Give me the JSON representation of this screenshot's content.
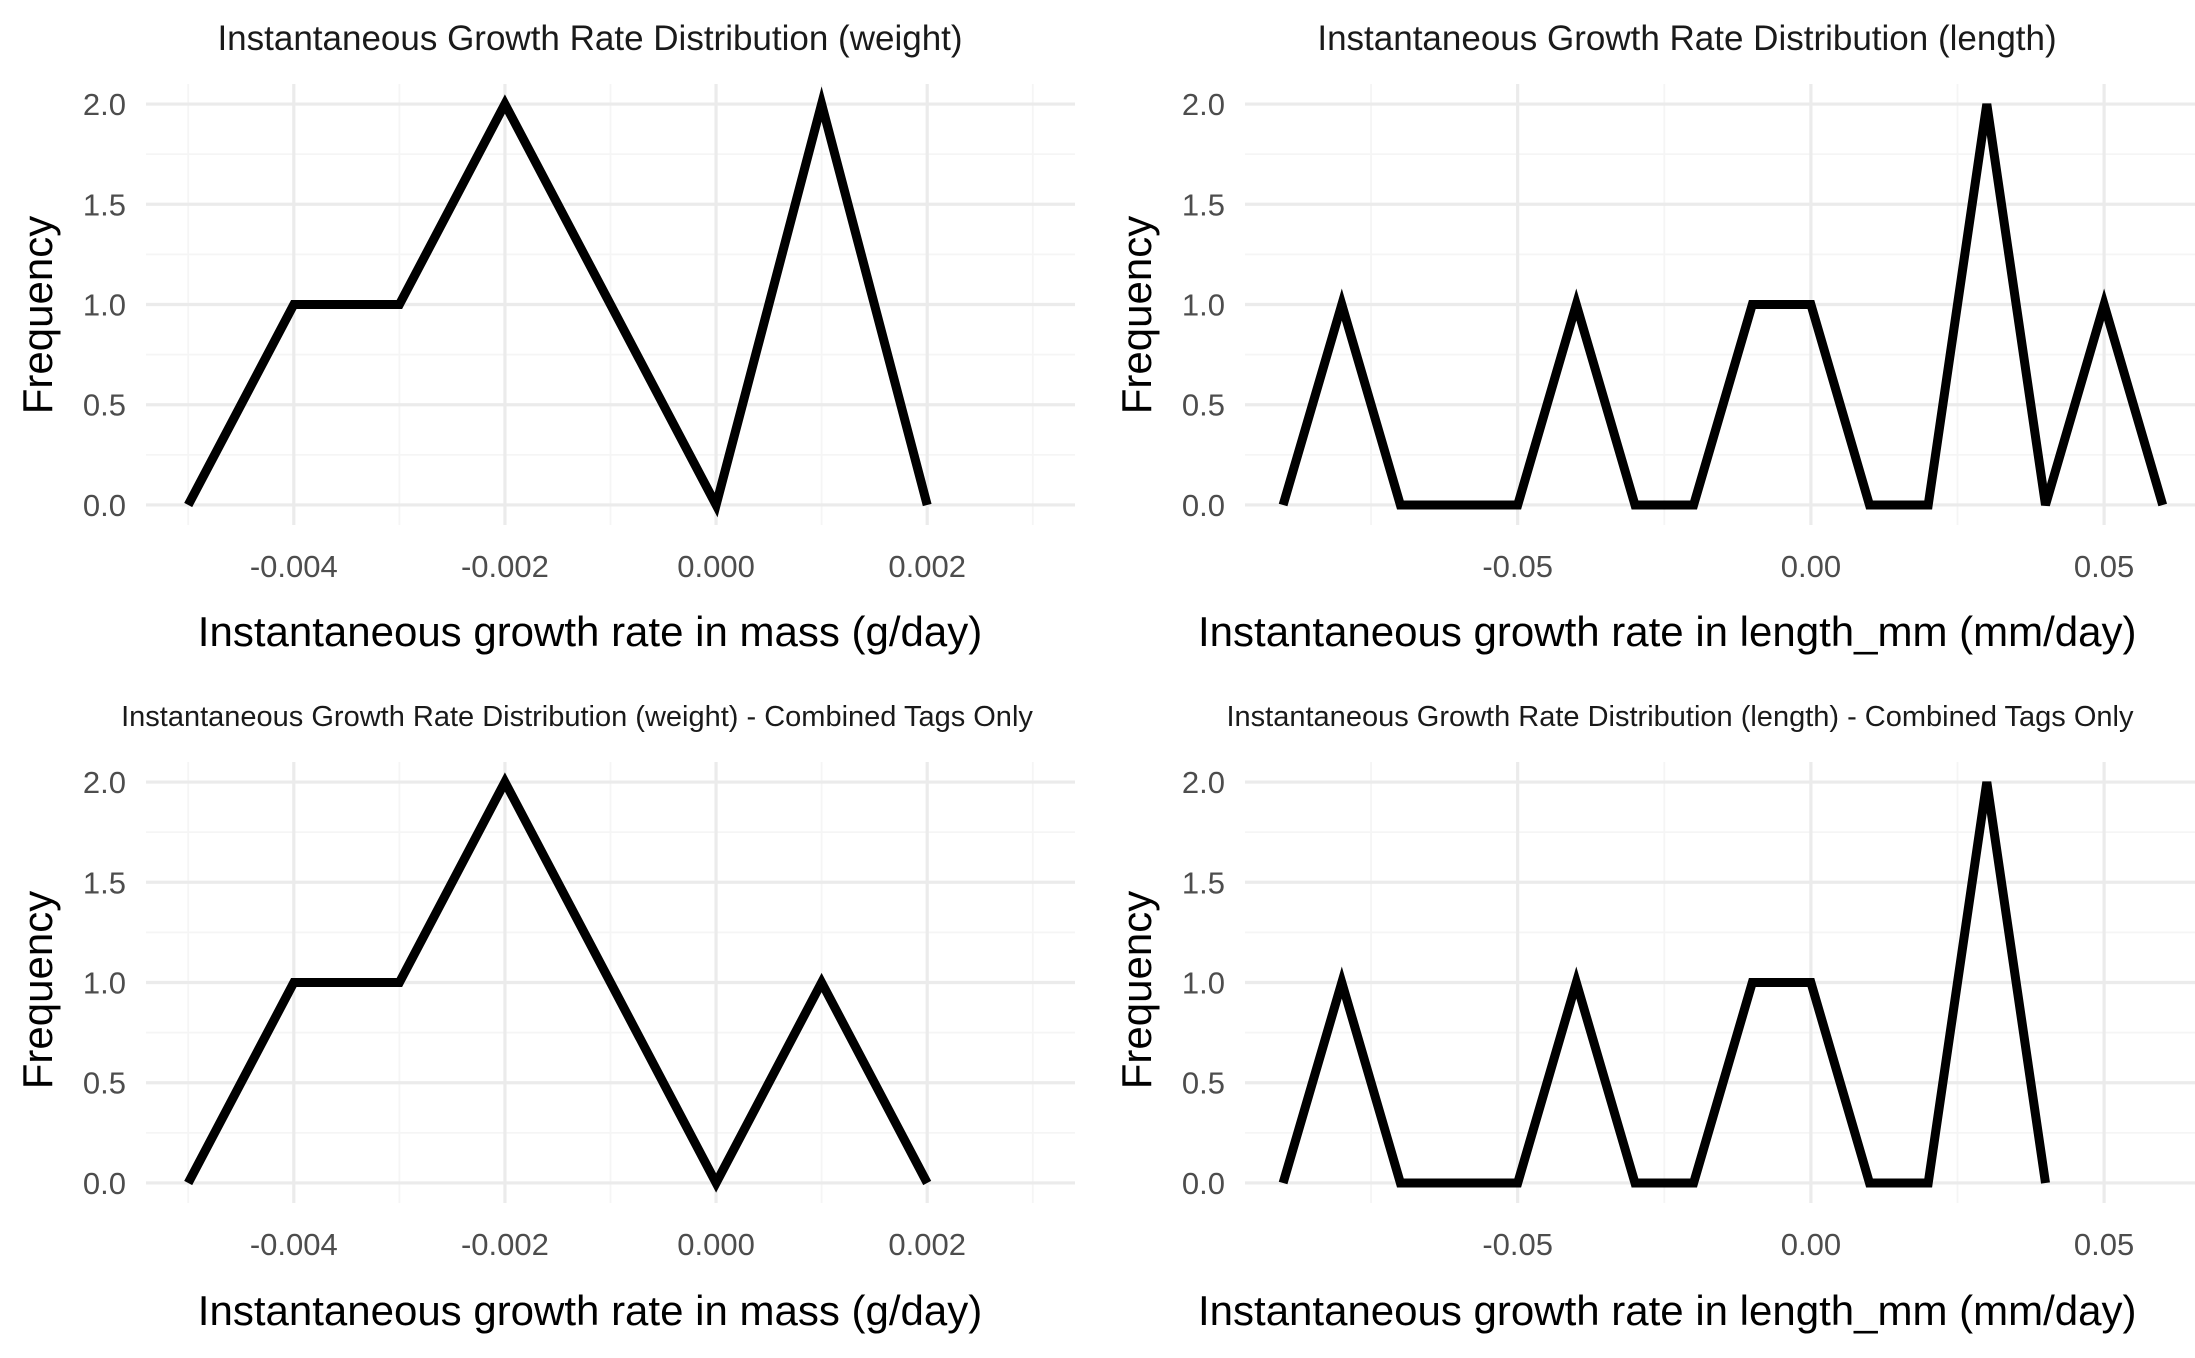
{
  "chart_data": [
    {
      "type": "line",
      "title": "Instantaneous Growth Rate Distribution (weight)",
      "xlabel": "Instantaneous growth rate in mass (g/day)",
      "ylabel": "Frequency",
      "x": [
        -0.005,
        -0.004,
        -0.003,
        -0.002,
        -0.001,
        0.0,
        0.001,
        0.002
      ],
      "y": [
        0,
        1,
        1,
        2,
        1,
        0,
        2,
        0
      ],
      "xlim": [
        -0.0054,
        0.0034
      ],
      "ylim": [
        0,
        2.0
      ],
      "x_ticks": [
        -0.004,
        -0.002,
        0.0,
        0.002
      ],
      "x_tick_labels": [
        "-0.004",
        "-0.002",
        "0.000",
        "0.002"
      ],
      "y_ticks": [
        0,
        0.5,
        1,
        1.5,
        2
      ],
      "y_tick_labels": [
        "0.0",
        "0.5",
        "1.0",
        "1.5",
        "2.0"
      ],
      "grid": true
    },
    {
      "type": "line",
      "title": "Instantaneous Growth Rate Distribution (length)",
      "xlabel": "Instantaneous growth rate in length_mm (mm/day)",
      "ylabel": "Frequency",
      "x": [
        -0.09,
        -0.08,
        -0.07,
        -0.06,
        -0.05,
        -0.04,
        -0.03,
        -0.02,
        -0.01,
        0.0,
        0.01,
        0.02,
        0.03,
        0.04,
        0.05,
        0.06
      ],
      "y": [
        0,
        1,
        0,
        0,
        0,
        1,
        0,
        0,
        1,
        1,
        0,
        0,
        2,
        0,
        1,
        0
      ],
      "xlim": [
        -0.0965,
        0.0655
      ],
      "ylim": [
        0,
        2.0
      ],
      "x_ticks": [
        -0.05,
        0.0,
        0.05
      ],
      "x_tick_labels": [
        "-0.05",
        "0.00",
        "0.05"
      ],
      "y_ticks": [
        0,
        0.5,
        1,
        1.5,
        2
      ],
      "y_tick_labels": [
        "0.0",
        "0.5",
        "1.0",
        "1.5",
        "2.0"
      ],
      "grid": true
    },
    {
      "type": "line",
      "title": "Instantaneous Growth Rate Distribution (weight) - Combined Tags Only",
      "xlabel": "Instantaneous growth rate in mass (g/day)",
      "ylabel": "Frequency",
      "x": [
        -0.005,
        -0.004,
        -0.003,
        -0.002,
        -0.001,
        0.0,
        0.001,
        0.002
      ],
      "y": [
        0,
        1,
        1,
        2,
        1,
        0,
        1,
        0
      ],
      "xlim": [
        -0.0054,
        0.0034
      ],
      "ylim": [
        0,
        2.0
      ],
      "x_ticks": [
        -0.004,
        -0.002,
        0.0,
        0.002
      ],
      "x_tick_labels": [
        "-0.004",
        "-0.002",
        "0.000",
        "0.002"
      ],
      "y_ticks": [
        0,
        0.5,
        1,
        1.5,
        2
      ],
      "y_tick_labels": [
        "0.0",
        "0.5",
        "1.0",
        "1.5",
        "2.0"
      ],
      "grid": true
    },
    {
      "type": "line",
      "title": "Instantaneous Growth Rate Distribution (length) - Combined Tags Only",
      "xlabel": "Instantaneous growth rate in length_mm (mm/day)",
      "ylabel": "Frequency",
      "x": [
        -0.09,
        -0.08,
        -0.07,
        -0.06,
        -0.05,
        -0.04,
        -0.03,
        -0.02,
        -0.01,
        0.0,
        0.01,
        0.02,
        0.03,
        0.04
      ],
      "y": [
        0,
        1,
        0,
        0,
        0,
        1,
        0,
        0,
        1,
        1,
        0,
        0,
        2,
        0
      ],
      "xlim": [
        -0.0965,
        0.0655
      ],
      "ylim": [
        0,
        2.0
      ],
      "x_ticks": [
        -0.05,
        0.0,
        0.05
      ],
      "x_tick_labels": [
        "-0.05",
        "0.00",
        "0.05"
      ],
      "y_ticks": [
        0,
        0.5,
        1,
        1.5,
        2
      ],
      "y_tick_labels": [
        "0.0",
        "0.5",
        "1.0",
        "1.5",
        "2.0"
      ],
      "grid": true
    }
  ]
}
